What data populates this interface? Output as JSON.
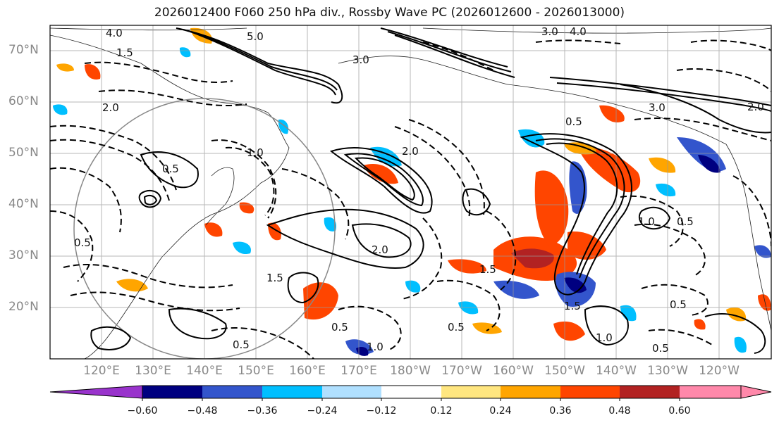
{
  "title": "2026012400 F060 250 hPa div., Rossby Wave PC (2026012600 - 2026013000)",
  "lat_labels": [
    "70°N",
    "60°N",
    "50°N",
    "40°N",
    "30°N",
    "20°N"
  ],
  "lon_labels": [
    "120°E",
    "130°E",
    "140°E",
    "150°E",
    "160°E",
    "170°E",
    "180°W",
    "170°W",
    "160°W",
    "150°W",
    "140°W",
    "130°W",
    "120°W"
  ],
  "colorbar": {
    "ticks": [
      "−0.60",
      "−0.48",
      "−0.36",
      "−0.24",
      "−0.12",
      "0.12",
      "0.24",
      "0.36",
      "0.48",
      "0.60"
    ],
    "colors": [
      "#9933cc",
      "#000080",
      "#3355cc",
      "#00bfff",
      "#b0e0ff",
      "#ffffff",
      "#ffe680",
      "#ffa500",
      "#ff4500",
      "#b22222",
      "#ff88aa"
    ]
  },
  "contour_labels": [
    "4.0",
    "3.0",
    "5.0",
    "1.5",
    "2.0",
    "0.5",
    "1.0",
    "3.0",
    "2.0",
    "0.5",
    "1.5",
    "0.5",
    "2.0",
    "1.0",
    "0.5",
    "1.5",
    "0.5",
    "1.0",
    "0.5",
    "1.5",
    "1.0",
    "0.5",
    "0.5",
    "2.0",
    "3.0",
    "4.0",
    "0.5"
  ]
}
